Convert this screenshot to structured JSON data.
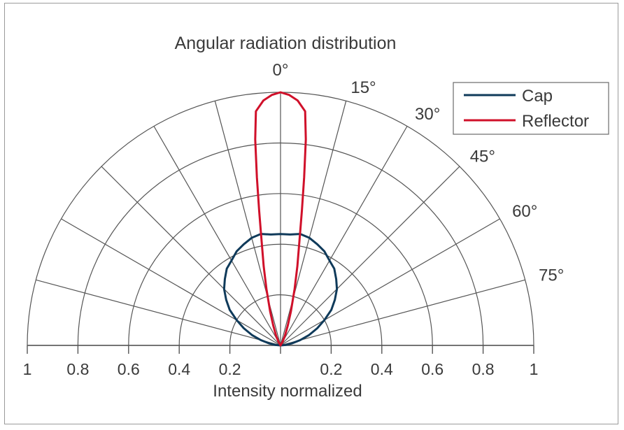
{
  "chart_data": {
    "type": "polar-line",
    "title": "Angular radiation distribution",
    "xlabel": "Intensity normalized",
    "angle_labels": [
      "0°",
      "15°",
      "30°",
      "45°",
      "60°",
      "75°"
    ],
    "angle_values": [
      0,
      15,
      30,
      45,
      60,
      75
    ],
    "x_tick_labels": [
      "1",
      "0.8",
      "0.6",
      "0.4",
      "0.2",
      "0.2",
      "0.4",
      "0.6",
      "0.8",
      "1"
    ],
    "x_tick_values": [
      -1,
      -0.8,
      -0.6,
      -0.4,
      -0.2,
      0.2,
      0.4,
      0.6,
      0.8,
      1
    ],
    "rings": [
      0.2,
      0.4,
      0.6,
      0.8,
      1.0
    ],
    "radial_step_deg": 15,
    "legend_position": "top-right",
    "series": [
      {
        "name": "Cap",
        "color": "#0f3a5a",
        "points": [
          {
            "angle": 0,
            "r": 0.44
          },
          {
            "angle": 5,
            "r": 0.44
          },
          {
            "angle": 10,
            "r": 0.447
          },
          {
            "angle": 15,
            "r": 0.44
          },
          {
            "angle": 20,
            "r": 0.425
          },
          {
            "angle": 25,
            "r": 0.41
          },
          {
            "angle": 30,
            "r": 0.387
          },
          {
            "angle": 35,
            "r": 0.37
          },
          {
            "angle": 40,
            "r": 0.342
          },
          {
            "angle": 45,
            "r": 0.315
          },
          {
            "angle": 50,
            "r": 0.28
          },
          {
            "angle": 55,
            "r": 0.245
          },
          {
            "angle": 60,
            "r": 0.2
          },
          {
            "angle": 65,
            "r": 0.16
          },
          {
            "angle": 70,
            "r": 0.12
          },
          {
            "angle": 75,
            "r": 0.08
          },
          {
            "angle": 80,
            "r": 0.045
          },
          {
            "angle": 85,
            "r": 0.02
          },
          {
            "angle": 90,
            "r": 0.0
          }
        ]
      },
      {
        "name": "Reflector",
        "color": "#d0102a",
        "points": [
          {
            "angle": 0,
            "r": 1.0
          },
          {
            "angle": 2,
            "r": 0.99
          },
          {
            "angle": 4,
            "r": 0.97
          },
          {
            "angle": 6,
            "r": 0.93
          },
          {
            "angle": 7,
            "r": 0.82
          },
          {
            "angle": 8,
            "r": 0.67
          },
          {
            "angle": 9,
            "r": 0.54
          },
          {
            "angle": 10,
            "r": 0.44
          },
          {
            "angle": 12,
            "r": 0.32
          },
          {
            "angle": 14,
            "r": 0.23
          },
          {
            "angle": 17,
            "r": 0.14
          },
          {
            "angle": 20,
            "r": 0.085
          },
          {
            "angle": 25,
            "r": 0.04
          },
          {
            "angle": 30,
            "r": 0.015
          },
          {
            "angle": 40,
            "r": 0.0
          }
        ]
      }
    ]
  }
}
